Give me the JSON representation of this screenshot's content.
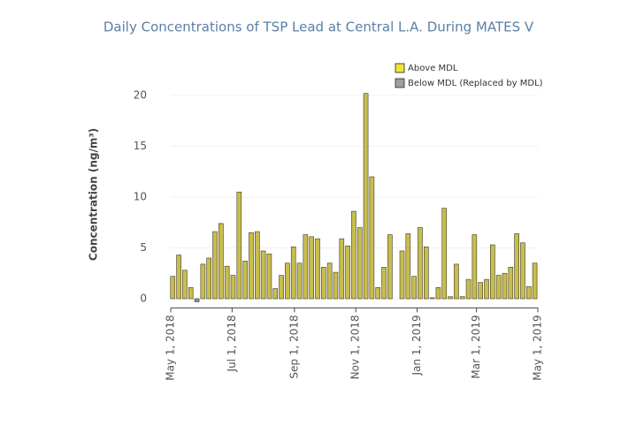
{
  "chart_data": {
    "type": "bar",
    "title": "Daily Concentrations of TSP Lead at Central L.A. During MATES V",
    "y_label": "Concentration (ng/m³)",
    "x": [
      "2018-05-03",
      "2018-05-09",
      "2018-05-15",
      "2018-05-21",
      "2018-05-27",
      "2018-06-02",
      "2018-06-08",
      "2018-06-14",
      "2018-06-20",
      "2018-06-26",
      "2018-07-02",
      "2018-07-08",
      "2018-07-14",
      "2018-07-20",
      "2018-07-26",
      "2018-08-01",
      "2018-08-07",
      "2018-08-13",
      "2018-08-19",
      "2018-08-25",
      "2018-08-31",
      "2018-09-06",
      "2018-09-12",
      "2018-09-18",
      "2018-09-24",
      "2018-09-30",
      "2018-10-06",
      "2018-10-12",
      "2018-10-18",
      "2018-10-24",
      "2018-10-30",
      "2018-11-05",
      "2018-11-11",
      "2018-11-17",
      "2018-11-23",
      "2018-11-29",
      "2018-12-05",
      "2018-12-11",
      "2018-12-17",
      "2018-12-23",
      "2018-12-29",
      "2019-01-04",
      "2019-01-10",
      "2019-01-16",
      "2019-01-22",
      "2019-01-28",
      "2019-02-03",
      "2019-02-09",
      "2019-02-15",
      "2019-02-21",
      "2019-02-27",
      "2019-03-05",
      "2019-03-11",
      "2019-03-17",
      "2019-03-23",
      "2019-03-29",
      "2019-04-04",
      "2019-04-10",
      "2019-04-16",
      "2019-04-22",
      "2019-04-28"
    ],
    "series": [
      {
        "name": "Above MDL",
        "color": "#c9bd4c",
        "legend_color": "#f0e33a",
        "values": [
          2.2,
          4.3,
          2.8,
          1.1,
          null,
          3.4,
          4.0,
          6.6,
          7.4,
          3.2,
          2.3,
          10.5,
          3.7,
          6.5,
          6.6,
          4.7,
          4.4,
          1.0,
          2.3,
          3.5,
          5.1,
          3.5,
          6.3,
          6.1,
          5.9,
          3.1,
          3.5,
          2.6,
          5.9,
          5.2,
          8.6,
          7.0,
          20.2,
          12.0,
          1.1,
          3.1,
          6.3,
          null,
          4.7,
          6.4,
          2.2,
          7.0,
          5.1,
          0.1,
          1.1,
          8.9,
          0.2,
          3.4,
          0.2,
          1.9,
          6.3,
          1.6,
          1.9,
          5.3,
          2.3,
          2.5,
          3.1,
          6.4,
          5.5,
          1.2,
          3.5
        ]
      },
      {
        "name": "Below MDL (Replaced by MDL)",
        "color": "#8c8c8c",
        "legend_color": "#a0a0a0",
        "values": [
          null,
          null,
          null,
          null,
          -0.3,
          null,
          null,
          null,
          null,
          null,
          null,
          null,
          null,
          null,
          null,
          null,
          null,
          null,
          null,
          null,
          null,
          null,
          null,
          null,
          null,
          null,
          null,
          null,
          null,
          null,
          null,
          null,
          null,
          null,
          null,
          null,
          null,
          null,
          null,
          null,
          null,
          null,
          null,
          null,
          null,
          null,
          null,
          null,
          null,
          null,
          null,
          null,
          null,
          null,
          null,
          null,
          null,
          null,
          null,
          null,
          null
        ]
      }
    ],
    "xlim": [
      "2018-05-01",
      "2019-05-01"
    ],
    "xticks": [
      {
        "value": "2018-05-01",
        "label": "May 1, 2018"
      },
      {
        "value": "2018-07-01",
        "label": "Jul 1, 2018"
      },
      {
        "value": "2018-09-01",
        "label": "Sep 1, 2018"
      },
      {
        "value": "2018-11-01",
        "label": "Nov 1, 2018"
      },
      {
        "value": "2019-01-01",
        "label": "Jan 1, 2019"
      },
      {
        "value": "2019-03-01",
        "label": "Mar 1, 2019"
      },
      {
        "value": "2019-05-01",
        "label": "May 1, 2019"
      }
    ],
    "ylim": [
      -0.9,
      21
    ],
    "yticks": [
      0,
      5,
      10,
      15,
      20
    ],
    "grid": true,
    "legend": "top-right"
  }
}
